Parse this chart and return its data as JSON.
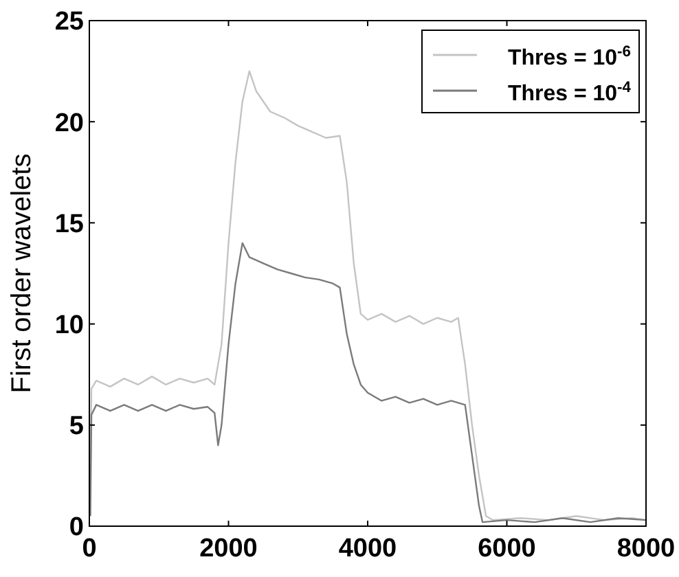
{
  "chart_data": {
    "type": "line",
    "ylabel": "First order wavelets",
    "xlim": [
      0,
      8000
    ],
    "ylim": [
      0,
      25
    ],
    "xticks": [
      0,
      2000,
      4000,
      6000,
      8000
    ],
    "yticks": [
      0,
      5,
      10,
      15,
      20,
      25
    ],
    "legend": "top right",
    "grid": false,
    "line_style": "solid",
    "series": [
      {
        "name": "Thres = 10$^{-6}$",
        "color": "#c4c4c4",
        "x": [
          15,
          30,
          100,
          300,
          500,
          700,
          900,
          1100,
          1300,
          1500,
          1700,
          1800,
          1900,
          2000,
          2100,
          2200,
          2300,
          2400,
          2500,
          2600,
          2800,
          3000,
          3200,
          3400,
          3600,
          3700,
          3800,
          3900,
          4000,
          4200,
          4400,
          4600,
          4800,
          5000,
          5200,
          5300,
          5400,
          5500,
          5600,
          5700,
          5800,
          6200,
          6600,
          7000,
          7400,
          7800,
          8000
        ],
        "values": [
          2,
          6.8,
          7.2,
          6.9,
          7.3,
          7.0,
          7.4,
          7.0,
          7.3,
          7.1,
          7.3,
          7.0,
          9,
          14,
          18,
          21,
          22.5,
          21.5,
          21,
          20.5,
          20.2,
          19.8,
          19.5,
          19.2,
          19.3,
          17,
          13,
          10.5,
          10.2,
          10.5,
          10.1,
          10.4,
          10.0,
          10.3,
          10.1,
          10.3,
          8,
          5,
          2.5,
          0.5,
          0.3,
          0.4,
          0.3,
          0.5,
          0.3,
          0.4,
          0.3
        ]
      },
      {
        "name": "Thres = 10$^{-4}$",
        "color": "#7a7a7a",
        "x": [
          15,
          30,
          100,
          300,
          500,
          700,
          900,
          1100,
          1300,
          1500,
          1700,
          1800,
          1850,
          1900,
          2000,
          2100,
          2200,
          2300,
          2500,
          2700,
          2900,
          3100,
          3300,
          3500,
          3600,
          3700,
          3800,
          3900,
          4000,
          4200,
          4400,
          4600,
          4800,
          5000,
          5200,
          5400,
          5500,
          5600,
          5650,
          6000,
          6400,
          6800,
          7200,
          7600,
          8000
        ],
        "values": [
          0.5,
          5.5,
          6.0,
          5.7,
          6.0,
          5.7,
          6.0,
          5.7,
          6.0,
          5.8,
          5.9,
          5.6,
          4.0,
          5,
          9,
          12,
          14,
          13.3,
          13,
          12.7,
          12.5,
          12.3,
          12.2,
          12,
          11.8,
          9.5,
          8,
          7,
          6.6,
          6.2,
          6.4,
          6.1,
          6.3,
          6.0,
          6.2,
          6.0,
          3.5,
          1,
          0.2,
          0.3,
          0.2,
          0.4,
          0.2,
          0.4,
          0.3
        ]
      }
    ]
  }
}
